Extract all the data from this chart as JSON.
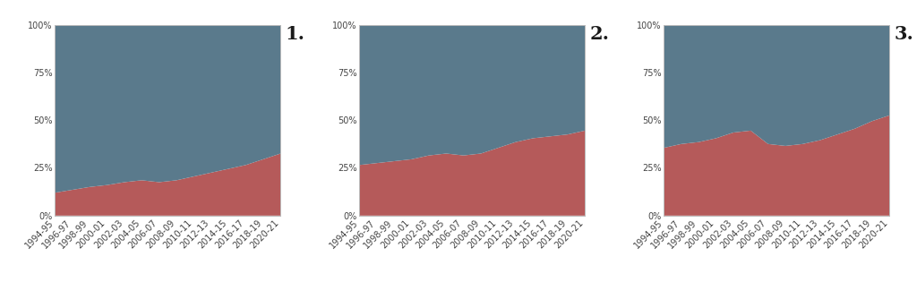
{
  "years": [
    "1994-95",
    "1996-97",
    "1998-99",
    "2000-01",
    "2002-03",
    "2004-05",
    "2006-07",
    "2008-09",
    "2010-11",
    "2012-13",
    "2014-15",
    "2016-17",
    "2018-19",
    "2020-21"
  ],
  "chart1_minoritized": [
    0.12,
    0.135,
    0.15,
    0.16,
    0.175,
    0.185,
    0.175,
    0.185,
    0.205,
    0.225,
    0.245,
    0.265,
    0.295,
    0.325
  ],
  "chart2_minoritized": [
    0.265,
    0.275,
    0.285,
    0.295,
    0.315,
    0.325,
    0.315,
    0.325,
    0.355,
    0.385,
    0.405,
    0.415,
    0.425,
    0.445
  ],
  "chart3_minoritized": [
    0.355,
    0.375,
    0.385,
    0.405,
    0.435,
    0.445,
    0.375,
    0.365,
    0.375,
    0.395,
    0.425,
    0.455,
    0.495,
    0.525
  ],
  "color_red": "#b55a5a",
  "color_blue": "#5a7a8c",
  "label_color": "#444444",
  "number_color": "#1a1a1a",
  "bg_color": "#ffffff",
  "yticks": [
    0.0,
    0.25,
    0.5,
    0.75,
    1.0
  ],
  "ytick_labels": [
    "0%",
    "25%",
    "50%",
    "75%",
    "100%"
  ],
  "panel_labels": [
    "1.",
    "2.",
    "3."
  ],
  "tick_fontsize": 7.0,
  "panel_label_fontsize": 15
}
